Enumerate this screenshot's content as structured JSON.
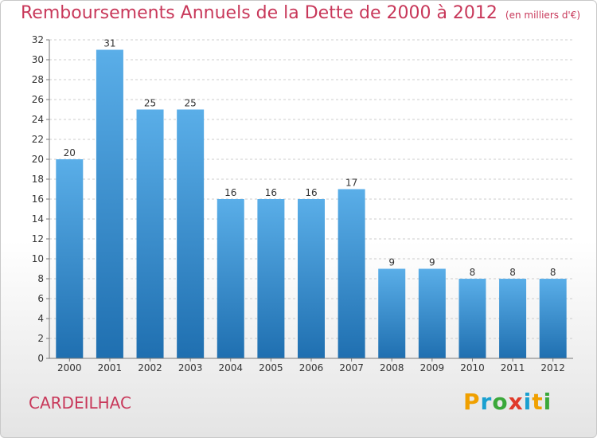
{
  "title": "Remboursements Annuels de la Dette de 2000 à 2012",
  "unit_note": "(en milliers d'€)",
  "commune": "CARDEILHAC",
  "logo_text": "Proxiti",
  "colors": {
    "title": "#c8385a",
    "bar_top": "#5aaee8",
    "bar_bottom": "#1f6fb0",
    "grid": "#cccccc"
  },
  "chart_data": {
    "type": "bar",
    "title": "Remboursements Annuels de la Dette de 2000 à 2012",
    "categories": [
      "2000",
      "2001",
      "2002",
      "2003",
      "2004",
      "2005",
      "2006",
      "2007",
      "2008",
      "2009",
      "2010",
      "2011",
      "2012"
    ],
    "values": [
      20,
      31,
      25,
      25,
      16,
      16,
      16,
      17,
      9,
      9,
      8,
      8,
      8
    ],
    "ylim": [
      0,
      32
    ],
    "yticks": [
      0,
      2,
      4,
      6,
      8,
      10,
      12,
      14,
      16,
      18,
      20,
      22,
      24,
      26,
      28,
      30,
      32
    ],
    "grid": true,
    "data_labels": true
  }
}
